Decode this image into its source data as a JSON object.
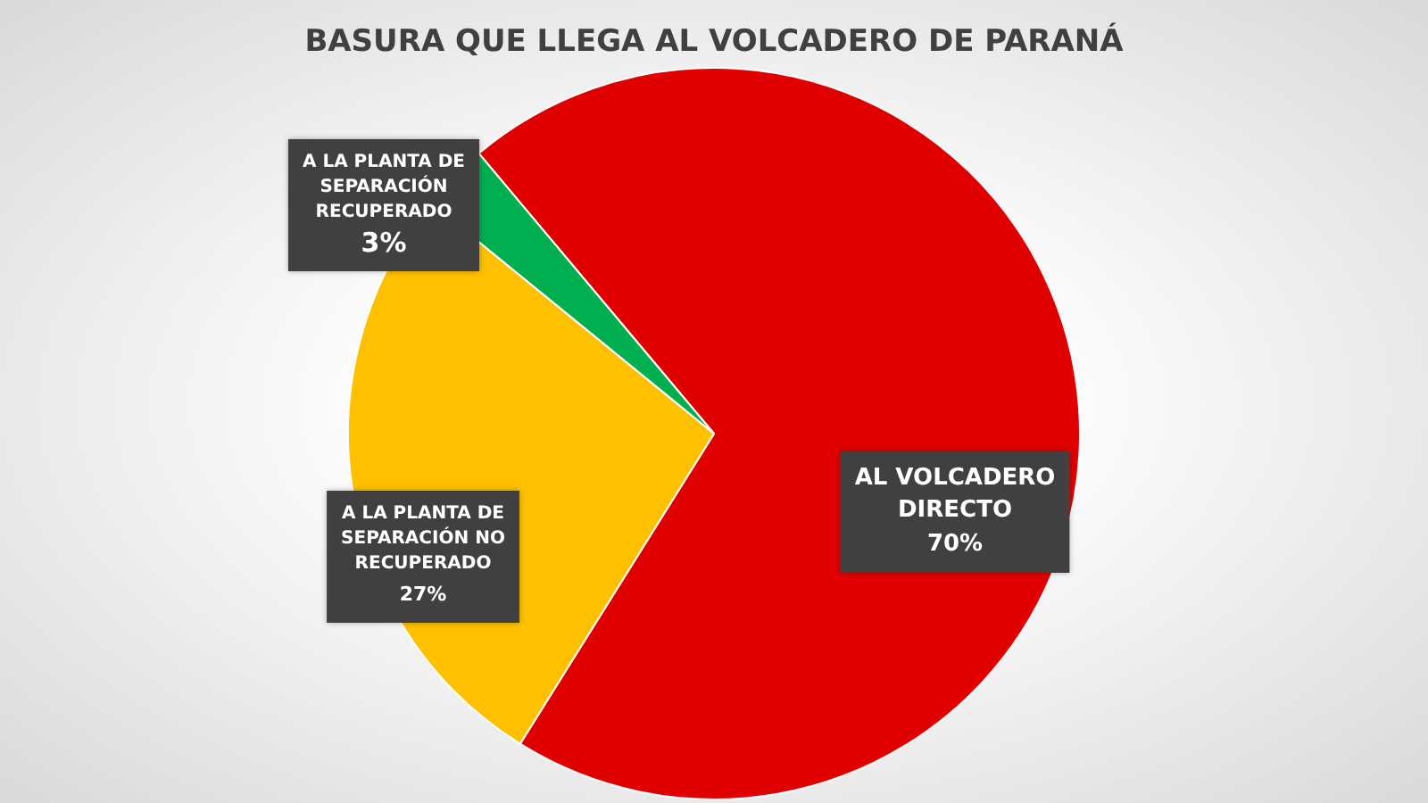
{
  "chart_data": {
    "type": "pie",
    "title": "BASURA QUE LLEGA AL VOLCADERO DE PARANÁ",
    "categories": [
      "AL VOLCADERO DIRECTO",
      "A LA PLANTA DE SEPARACIÓN NO RECUPERADO",
      "A LA PLANTA DE SEPARACIÓN RECUPERADO"
    ],
    "values": [
      70,
      27,
      3
    ],
    "value_labels": [
      "70%",
      "27%",
      "3%"
    ],
    "colors": [
      "#e00000",
      "#ffc000",
      "#00b050"
    ],
    "data_labels": true,
    "legend": false
  }
}
